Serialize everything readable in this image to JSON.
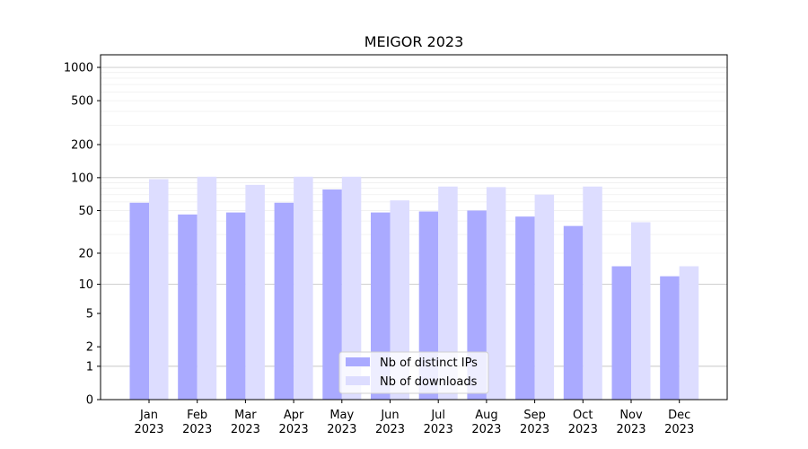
{
  "chart_data": {
    "type": "bar",
    "title": "MEIGOR 2023",
    "xlabel": "",
    "ylabel": "",
    "scale": "symlog",
    "categories": [
      [
        "Jan",
        "2023"
      ],
      [
        "Feb",
        "2023"
      ],
      [
        "Mar",
        "2023"
      ],
      [
        "Apr",
        "2023"
      ],
      [
        "May",
        "2023"
      ],
      [
        "Jun",
        "2023"
      ],
      [
        "Jul",
        "2023"
      ],
      [
        "Aug",
        "2023"
      ],
      [
        "Sep",
        "2023"
      ],
      [
        "Oct",
        "2023"
      ],
      [
        "Nov",
        "2023"
      ],
      [
        "Dec",
        "2023"
      ]
    ],
    "series": [
      {
        "name": "Nb of distinct IPs",
        "color": "#aaaaff",
        "values": [
          59,
          46,
          48,
          59,
          78,
          48,
          49,
          50,
          44,
          36,
          15,
          12
        ]
      },
      {
        "name": "Nb of downloads",
        "color": "#ddddff",
        "values": [
          97,
          102,
          86,
          102,
          102,
          62,
          83,
          82,
          70,
          83,
          39,
          15
        ]
      }
    ],
    "yticks": [
      "0",
      "1",
      "2",
      "5",
      "10",
      "20",
      "50",
      "100",
      "200",
      "500",
      "1000"
    ],
    "ylim": [
      0,
      1300
    ],
    "grid": true,
    "legend_position": "bottom-center"
  }
}
